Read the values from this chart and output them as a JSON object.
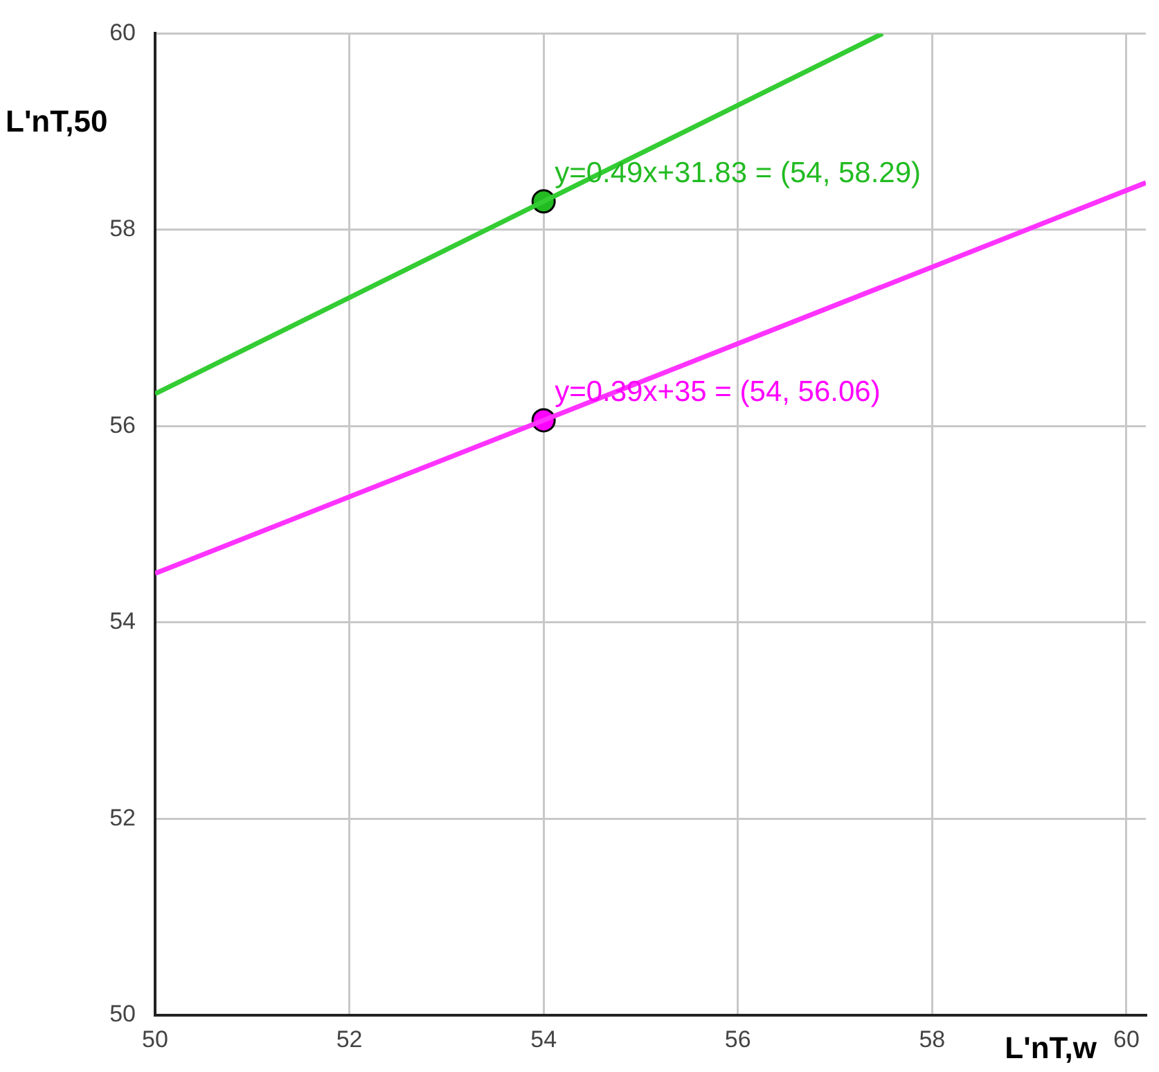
{
  "chart_data": {
    "type": "line",
    "xlabel": "L'nT,w",
    "ylabel": "L'nT,50",
    "xlim": [
      50,
      60.2
    ],
    "ylim": [
      50,
      60
    ],
    "xticks": [
      50,
      52,
      54,
      56,
      58,
      60
    ],
    "yticks": [
      50,
      52,
      54,
      56,
      58,
      60
    ],
    "grid": true,
    "legend": false,
    "series": [
      {
        "type": "line",
        "color": "#33cc33",
        "marker": "none",
        "x": [
          50,
          57.49
        ],
        "values": [
          56.33,
          60
        ]
      },
      {
        "type": "line",
        "color": "#ff33ff",
        "marker": "none",
        "x": [
          50,
          60.2
        ],
        "values": [
          54.5,
          58.48
        ]
      },
      {
        "type": "scatter",
        "color": "#22bb22",
        "marker": "circle",
        "x": [
          54
        ],
        "values": [
          58.29
        ],
        "value_labels": [
          "y=0.49x+31.83 = (54, 58.29)"
        ]
      },
      {
        "type": "scatter",
        "color": "#ff00ff",
        "marker": "circle",
        "x": [
          54
        ],
        "values": [
          56.06
        ],
        "value_labels": [
          "y=0.39x+35 = (54, 56.06)"
        ]
      }
    ]
  }
}
